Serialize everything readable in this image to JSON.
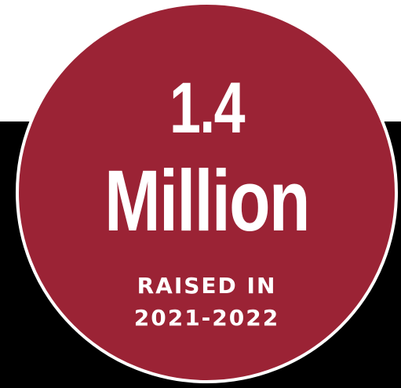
{
  "colors": {
    "circle_fill": "#9b2335",
    "circle_border": "#ffffff",
    "band": "#000000",
    "text": "#ffffff"
  },
  "badge": {
    "amount": "1.4",
    "unit": "Million",
    "caption_line1": "RAISED IN",
    "caption_line2": "2021-2022"
  }
}
